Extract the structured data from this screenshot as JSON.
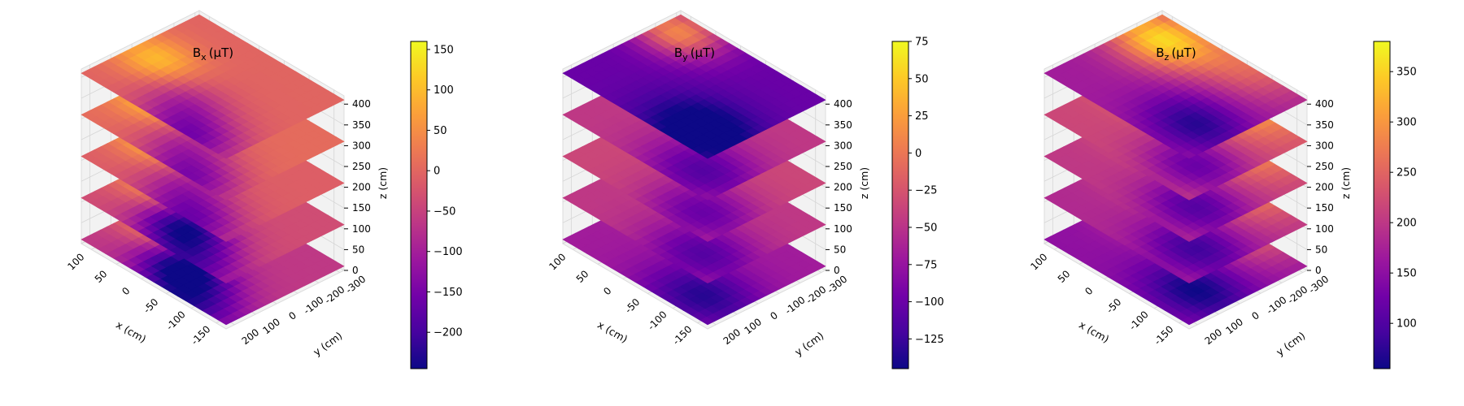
{
  "chart_data": [
    {
      "type": "surface3d",
      "title": {
        "main": "B",
        "sub": "x",
        "unit": "(μT)"
      },
      "xlabel": "x (cm)",
      "ylabel": "y (cm)",
      "zlabel": "z (cm)",
      "xticks": [
        "100",
        "50",
        "0",
        "-50",
        "-100",
        "-150"
      ],
      "yticks": [
        "-300",
        "-200",
        "-100",
        "0",
        "100",
        "200"
      ],
      "zticks": [
        "0",
        "50",
        "100",
        "150",
        "200",
        "250",
        "300",
        "350",
        "400"
      ],
      "xlim": [
        -170,
        120
      ],
      "ylim": [
        -320,
        240
      ],
      "zlim": [
        0,
        420
      ],
      "layers_z": [
        0,
        100,
        200,
        300,
        400
      ],
      "colormap": "plasma",
      "colorbar": {
        "min": -245,
        "max": 160,
        "ticks": [
          "150",
          "100",
          "50",
          "0",
          "−50",
          "−100",
          "−150",
          "−200"
        ],
        "tick_values": [
          150,
          100,
          50,
          0,
          -50,
          -100,
          -150,
          -200
        ]
      }
    },
    {
      "type": "surface3d",
      "title": {
        "main": "B",
        "sub": "y",
        "unit": "(μT)"
      },
      "xlabel": "x (cm)",
      "ylabel": "y (cm)",
      "zlabel": "z (cm)",
      "xticks": [
        "100",
        "50",
        "0",
        "-50",
        "-100",
        "-150"
      ],
      "yticks": [
        "-300",
        "-200",
        "-100",
        "0",
        "100",
        "200"
      ],
      "zticks": [
        "0",
        "50",
        "100",
        "150",
        "200",
        "250",
        "300",
        "350",
        "400"
      ],
      "xlim": [
        -170,
        120
      ],
      "ylim": [
        -320,
        240
      ],
      "zlim": [
        0,
        420
      ],
      "layers_z": [
        0,
        100,
        200,
        300,
        400
      ],
      "colormap": "plasma",
      "colorbar": {
        "min": -145,
        "max": 75,
        "ticks": [
          "75",
          "50",
          "25",
          "0",
          "−25",
          "−50",
          "−75",
          "−100",
          "−125"
        ],
        "tick_values": [
          75,
          50,
          25,
          0,
          -25,
          -50,
          -75,
          -100,
          -125
        ]
      }
    },
    {
      "type": "surface3d",
      "title": {
        "main": "B",
        "sub": "z",
        "unit": "(μT)"
      },
      "xlabel": "x (cm)",
      "ylabel": "y (cm)",
      "zlabel": "z (cm)",
      "xticks": [
        "100",
        "50",
        "0",
        "-50",
        "-100",
        "-150"
      ],
      "yticks": [
        "-300",
        "-200",
        "-100",
        "0",
        "100",
        "200"
      ],
      "zticks": [
        "0",
        "50",
        "100",
        "150",
        "200",
        "250",
        "300",
        "350",
        "400"
      ],
      "xlim": [
        -170,
        120
      ],
      "ylim": [
        -320,
        240
      ],
      "zlim": [
        0,
        420
      ],
      "layers_z": [
        0,
        100,
        200,
        300,
        400
      ],
      "colormap": "plasma",
      "colorbar": {
        "min": 55,
        "max": 380,
        "ticks": [
          "350",
          "300",
          "250",
          "200",
          "150",
          "100"
        ],
        "tick_values": [
          350,
          300,
          250,
          200,
          150,
          100
        ]
      }
    }
  ]
}
